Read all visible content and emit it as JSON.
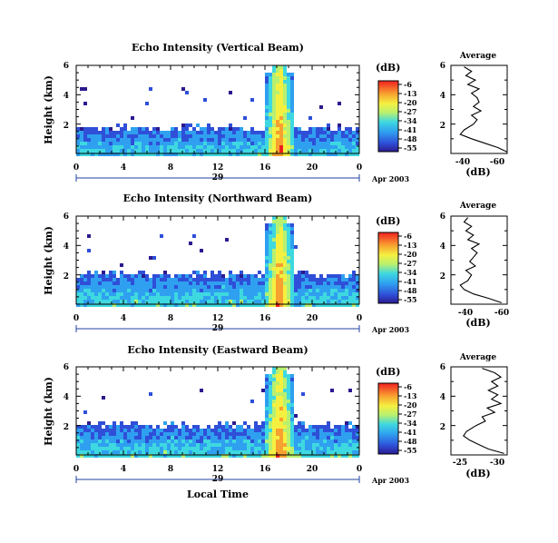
{
  "chart_data": [
    {
      "type": "heatmap",
      "title": "Echo Intensity (Vertical Beam)",
      "ylabel": "Height (km)",
      "x_ticks": [
        "0",
        "4",
        "8",
        "12",
        "16",
        "20",
        "0"
      ],
      "y_ticks": [
        "6",
        "4",
        "2"
      ],
      "xlim": [
        0,
        24
      ],
      "ylim": [
        0,
        6
      ],
      "date_label": "29",
      "date_suffix": "Apr 2003",
      "colorbar": {
        "unit": "(dB)",
        "ticks": [
          "-6",
          "-13",
          "-20",
          "-27",
          "-34",
          "-41",
          "-48",
          "-55"
        ],
        "range": [
          -55,
          -6
        ]
      },
      "storm": {
        "start_hour": 15.9,
        "end_hour": 18.3,
        "max_height_km": 6.0
      },
      "average_profile": {
        "title": "Average",
        "xlabel": "(dB)",
        "x_ticks": [
          "-40",
          "-60"
        ],
        "y_ticks": [
          "6",
          "4",
          "2"
        ],
        "xlim": [
          -35,
          -65
        ],
        "ylim": [
          0,
          6
        ],
        "height_km": [
          0.1,
          0.4,
          0.7,
          1.0,
          1.3,
          1.6,
          2.0,
          2.3,
          2.6,
          2.9,
          3.2,
          3.5,
          3.8,
          4.1,
          4.4,
          4.7,
          5.0,
          5.3,
          5.6,
          5.9
        ],
        "db": [
          -65,
          -60,
          -53,
          -46,
          -40,
          -42,
          -47,
          -49,
          -46,
          -51,
          -47,
          -50,
          -49,
          -46,
          -50,
          -44,
          -48,
          -43,
          -46,
          -42
        ]
      }
    },
    {
      "type": "heatmap",
      "title": "Echo Intensity (Northward Beam)",
      "ylabel": "Height (km)",
      "x_ticks": [
        "0",
        "4",
        "8",
        "12",
        "16",
        "20",
        "0"
      ],
      "y_ticks": [
        "6",
        "4",
        "2"
      ],
      "xlim": [
        0,
        24
      ],
      "ylim": [
        0,
        6
      ],
      "date_label": "29",
      "date_suffix": "Apr 2003",
      "colorbar": {
        "unit": "(dB)",
        "ticks": [
          "-6",
          "-13",
          "-20",
          "-27",
          "-34",
          "-41",
          "-48",
          "-55"
        ],
        "range": [
          -55,
          -6
        ]
      },
      "storm": {
        "start_hour": 15.9,
        "end_hour": 18.3,
        "max_height_km": 6.0
      },
      "average_profile": {
        "title": "Average",
        "xlabel": "(dB)",
        "x_ticks": [
          "-40",
          "-60"
        ],
        "y_ticks": [
          "6",
          "4",
          "2"
        ],
        "xlim": [
          -35,
          -65
        ],
        "ylim": [
          0,
          6
        ],
        "height_km": [
          0.1,
          0.4,
          0.7,
          1.0,
          1.3,
          1.6,
          2.0,
          2.3,
          2.6,
          2.9,
          3.2,
          3.5,
          3.8,
          4.1,
          4.4,
          4.7,
          5.0,
          5.3,
          5.6,
          5.9
        ],
        "db": [
          -62,
          -55,
          -47,
          -42,
          -40,
          -44,
          -46,
          -43,
          -48,
          -45,
          -47,
          -49,
          -46,
          -50,
          -44,
          -47,
          -43,
          -46,
          -42,
          -44
        ]
      }
    },
    {
      "type": "heatmap",
      "title": "Echo Intensity (Eastward Beam)",
      "ylabel": "Height (km)",
      "xlabel": "Local Time",
      "x_ticks": [
        "0",
        "4",
        "8",
        "12",
        "16",
        "20",
        "0"
      ],
      "y_ticks": [
        "6",
        "4",
        "2"
      ],
      "xlim": [
        0,
        24
      ],
      "ylim": [
        0,
        6
      ],
      "date_label": "29",
      "date_suffix": "Apr 2003",
      "colorbar": {
        "unit": "(dB)",
        "ticks": [
          "-6",
          "-13",
          "-20",
          "-27",
          "-34",
          "-41",
          "-48",
          "-55"
        ],
        "range": [
          -55,
          -6
        ]
      },
      "storm": {
        "start_hour": 15.9,
        "end_hour": 18.3,
        "max_height_km": 6.0
      },
      "average_profile": {
        "title": "Average",
        "xlabel": "(dB)",
        "x_ticks": [
          "-25",
          "-30"
        ],
        "y_ticks": [
          "6",
          "4",
          "2"
        ],
        "xlim": [
          -23,
          -32
        ],
        "ylim": [
          0,
          6
        ],
        "height_km": [
          0.1,
          0.4,
          0.7,
          1.0,
          1.3,
          1.6,
          2.0,
          2.3,
          2.6,
          2.9,
          3.2,
          3.5,
          3.8,
          4.1,
          4.4,
          4.7,
          5.0,
          5.3,
          5.6,
          5.9
        ],
        "db": [
          -31.5,
          -29,
          -27.5,
          -26,
          -25,
          -25.5,
          -27,
          -28.5,
          -28,
          -30,
          -28.8,
          -31,
          -29.5,
          -30.5,
          -29,
          -30.5,
          -29.5,
          -31,
          -30,
          -28
        ]
      }
    }
  ]
}
